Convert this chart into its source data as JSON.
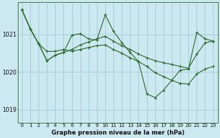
{
  "xlabel": "Graphe pression niveau de la mer (hPa)",
  "background_color": "#cce8f0",
  "grid_color": "#a0c8d8",
  "line_color": "#2d6a2d",
  "x_ticks": [
    0,
    1,
    2,
    3,
    4,
    5,
    6,
    7,
    8,
    9,
    10,
    11,
    12,
    13,
    14,
    15,
    16,
    17,
    18,
    19,
    20,
    21,
    22,
    23
  ],
  "y_ticks": [
    1019,
    1020,
    1021
  ],
  "ylim": [
    1018.65,
    1021.85
  ],
  "xlim": [
    -0.5,
    23.5
  ],
  "series": [
    [
      1021.65,
      1021.15,
      1020.75,
      1020.55,
      1020.55,
      1020.6,
      1020.55,
      1020.6,
      1020.65,
      1020.7,
      1020.72,
      1020.6,
      1020.5,
      1020.38,
      1020.28,
      1020.15,
      1019.98,
      1019.88,
      1019.78,
      1019.7,
      1019.68,
      1019.95,
      1020.08,
      1020.15
    ],
    [
      1021.65,
      1021.15,
      1020.75,
      1020.3,
      1020.45,
      1020.52,
      1020.98,
      1021.02,
      1020.88,
      1020.85,
      1021.52,
      1021.08,
      1020.78,
      1020.52,
      1020.28,
      1019.42,
      1019.32,
      1019.52,
      1019.78,
      1020.05,
      1020.08,
      1021.05,
      1020.88,
      1020.82
    ],
    [
      1021.65,
      1021.15,
      1020.75,
      1020.3,
      1020.45,
      1020.52,
      1020.6,
      1020.72,
      1020.8,
      1020.88,
      1020.95,
      1020.82,
      1020.7,
      1020.6,
      1020.48,
      1020.38,
      1020.3,
      1020.25,
      1020.2,
      1020.15,
      1020.1,
      1020.48,
      1020.78,
      1020.82
    ]
  ]
}
